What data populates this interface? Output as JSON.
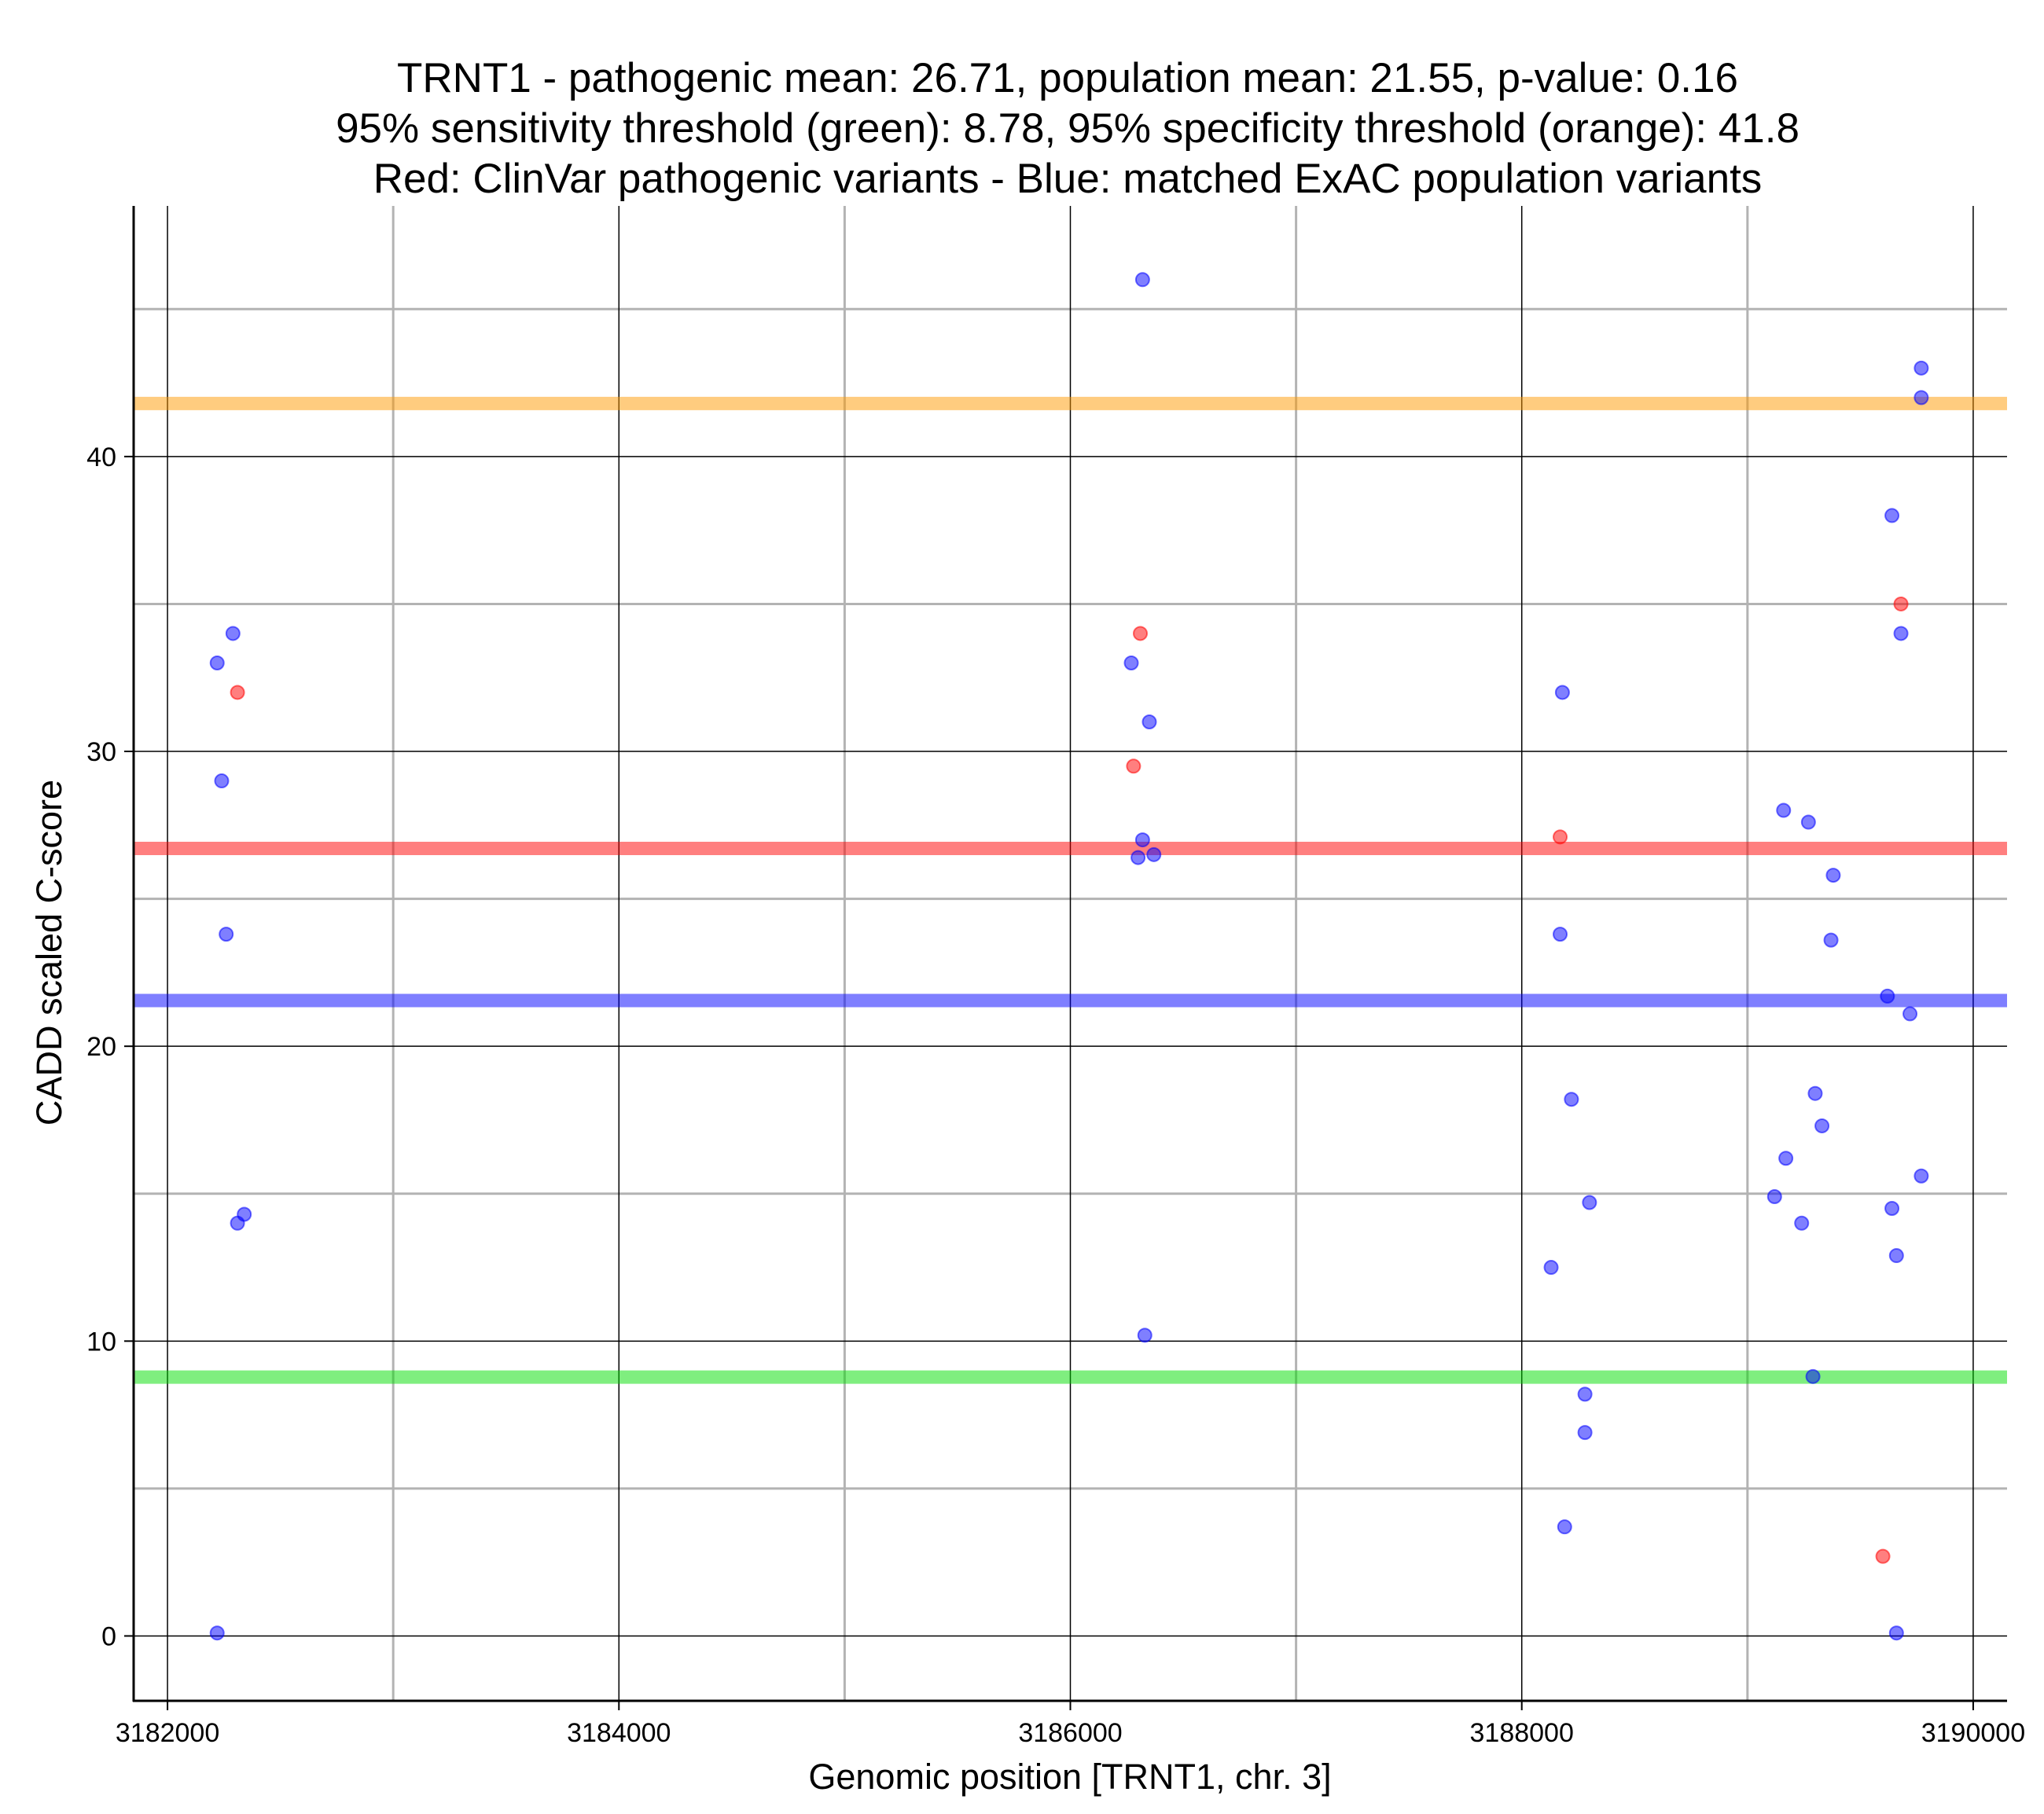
{
  "chart_data": {
    "type": "scatter",
    "title_lines": [
      "TRNT1 - pathogenic mean: 26.71, population mean: 21.55, p-value: 0.16",
      "95% sensitivity threshold (green): 8.78, 95% specificity threshold (orange): 41.8",
      "Red: ClinVar pathogenic variants - Blue: matched ExAC population variants"
    ],
    "xlabel": "Genomic position [TRNT1, chr. 3]",
    "ylabel": "CADD scaled C-score",
    "xlim": [
      3181850,
      3190150
    ],
    "ylim": [
      -2.2,
      48.5
    ],
    "x_ticks": [
      3182000,
      3184000,
      3186000,
      3188000,
      3190000
    ],
    "x_tick_labels": [
      "3182000",
      "3184000",
      "3186000",
      "3188000",
      "3190000"
    ],
    "x_minor_gridlines": [
      3183000,
      3185000,
      3187000,
      3189000
    ],
    "y_ticks": [
      0,
      10,
      20,
      30,
      40
    ],
    "y_tick_labels": [
      "0",
      "10",
      "20",
      "30",
      "40"
    ],
    "y_minor_gridlines": [
      5,
      15,
      25,
      35,
      45
    ],
    "grid": true,
    "colors": {
      "pathogenic": "#ff0000",
      "population": "#0000ff",
      "sensitivity_threshold": "#00dd00",
      "specificity_threshold": "#ff9900",
      "pathogenic_mean": "#ff0000",
      "population_mean": "#0000ff"
    },
    "reference_lines": [
      {
        "name": "specificity-threshold",
        "y": 41.8,
        "color": "#ff9900"
      },
      {
        "name": "pathogenic-mean",
        "y": 26.71,
        "color": "#ff0000"
      },
      {
        "name": "population-mean",
        "y": 21.55,
        "color": "#0000ff"
      },
      {
        "name": "sensitivity-threshold",
        "y": 8.78,
        "color": "#00dd00"
      }
    ],
    "series": [
      {
        "name": "ClinVar pathogenic variants",
        "color": "#ff0000",
        "points": [
          [
            3182310,
            32.0
          ],
          [
            3186310,
            34.0
          ],
          [
            3186280,
            29.5
          ],
          [
            3188170,
            27.1
          ],
          [
            3189680,
            35.0
          ],
          [
            3189600,
            2.7
          ]
        ]
      },
      {
        "name": "matched ExAC population variants",
        "color": "#0000ff",
        "points": [
          [
            3182220,
            33.0
          ],
          [
            3182290,
            34.0
          ],
          [
            3182240,
            29.0
          ],
          [
            3182260,
            23.8
          ],
          [
            3182340,
            14.3
          ],
          [
            3182310,
            14.0
          ],
          [
            3182220,
            0.1
          ],
          [
            3186320,
            46.0
          ],
          [
            3186270,
            33.0
          ],
          [
            3186350,
            31.0
          ],
          [
            3186320,
            27.0
          ],
          [
            3186300,
            26.4
          ],
          [
            3186370,
            26.5
          ],
          [
            3186330,
            10.2
          ],
          [
            3188180,
            32.0
          ],
          [
            3188170,
            23.8
          ],
          [
            3188220,
            18.2
          ],
          [
            3188300,
            14.7
          ],
          [
            3188130,
            12.5
          ],
          [
            3188280,
            8.2
          ],
          [
            3188280,
            6.9
          ],
          [
            3188190,
            3.7
          ],
          [
            3189160,
            28.0
          ],
          [
            3189270,
            27.6
          ],
          [
            3189380,
            25.8
          ],
          [
            3189370,
            23.6
          ],
          [
            3189300,
            18.4
          ],
          [
            3189170,
            16.2
          ],
          [
            3189330,
            17.3
          ],
          [
            3189120,
            14.9
          ],
          [
            3189240,
            14.0
          ],
          [
            3189290,
            8.8
          ],
          [
            3189620,
            21.7
          ],
          [
            3189720,
            21.1
          ],
          [
            3189640,
            14.5
          ],
          [
            3189660,
            12.9
          ],
          [
            3189640,
            38.0
          ],
          [
            3189680,
            34.0
          ],
          [
            3189770,
            43.0
          ],
          [
            3189770,
            42.0
          ],
          [
            3189770,
            15.6
          ],
          [
            3189660,
            0.1
          ]
        ]
      }
    ]
  }
}
